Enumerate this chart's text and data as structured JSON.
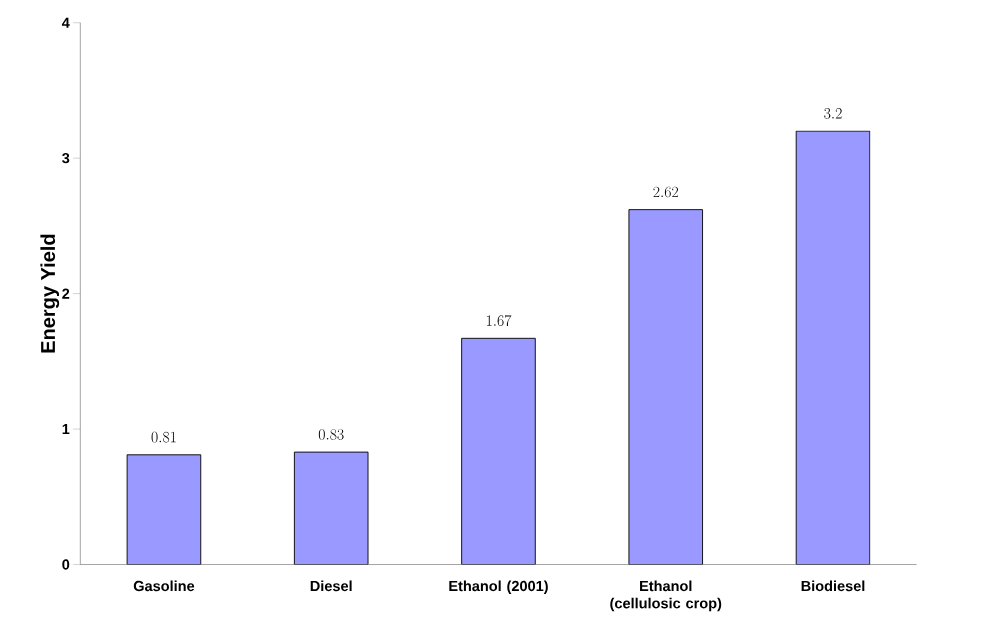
{
  "chart_data": {
    "type": "bar",
    "ylabel": "Energy Yield",
    "categories": [
      "Gasoline",
      "Diesel",
      "Ethanol (2001)",
      "Ethanol (cellulosic crop)",
      "Biodiesel"
    ],
    "values": [
      0.81,
      0.83,
      1.67,
      2.62,
      3.2
    ],
    "color": "#9999ff",
    "ylim": [
      0,
      4
    ],
    "yticks": [
      0,
      1,
      2,
      3,
      4
    ],
    "grid": false,
    "data_labels": true
  }
}
